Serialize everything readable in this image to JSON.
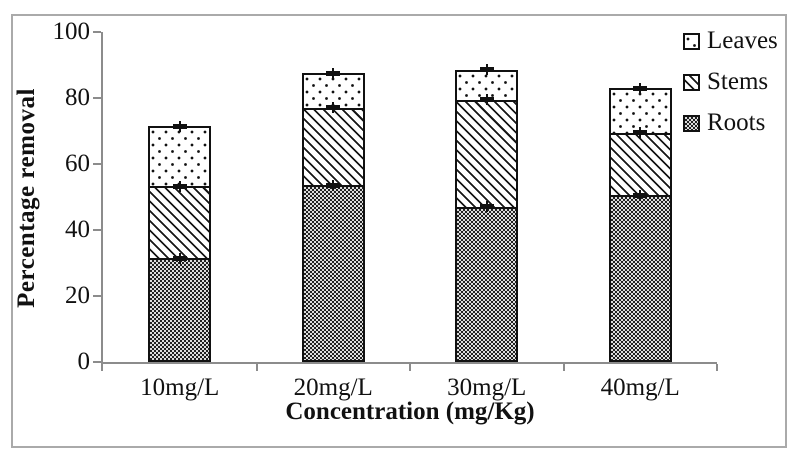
{
  "figure": {
    "background": "#ffffff",
    "border_color": "#aaaaaa",
    "axis_color": "#8c8c8c",
    "ink_color": "#111111"
  },
  "chart_data": {
    "type": "bar",
    "stacked": true,
    "title": "",
    "xlabel": "Concentration (mg/Kg)",
    "ylabel": "Percentage removal",
    "categories": [
      "10mg/L",
      "20mg/L",
      "30mg/L",
      "40mg/L"
    ],
    "series": [
      {
        "name": "Roots",
        "pattern": "roots-checker",
        "values": [
          31.5,
          53.5,
          47.0,
          50.5
        ],
        "errors": [
          1.0,
          1.0,
          1.0,
          1.0
        ]
      },
      {
        "name": "Stems",
        "pattern": "stems-diagonal",
        "values": [
          21.8,
          23.5,
          32.5,
          19.0
        ],
        "errors": [
          1.0,
          1.0,
          1.0,
          1.0
        ]
      },
      {
        "name": "Leaves",
        "pattern": "leaves-dots",
        "values": [
          18.2,
          10.5,
          9.0,
          13.5
        ],
        "errors": [
          1.0,
          1.0,
          1.0,
          1.0
        ]
      }
    ],
    "stack_totals": [
      71.5,
      87.5,
      88.5,
      83.0
    ],
    "ylim": [
      0,
      100
    ],
    "yticks": [
      0,
      20,
      40,
      60,
      80,
      100
    ],
    "grid": false,
    "error_bars": true,
    "legend": {
      "position": "top-right",
      "entries": [
        "Leaves",
        "Stems",
        "Roots"
      ]
    }
  }
}
